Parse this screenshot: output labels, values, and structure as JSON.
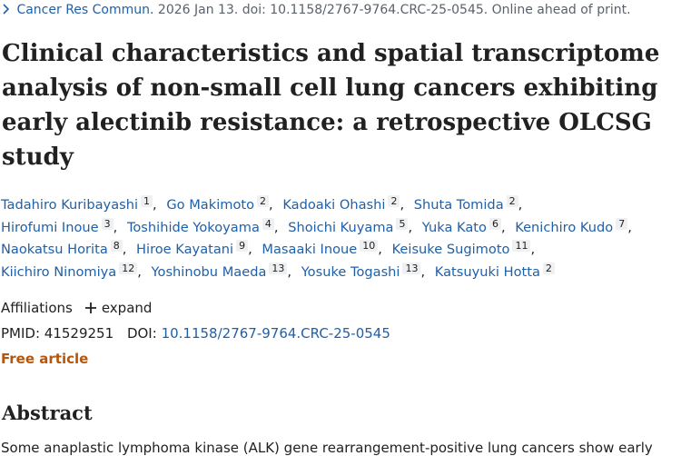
{
  "citation": {
    "journal": "Cancer Res Commun.",
    "details": "2026 Jan 13. doi: 10.1158/2767-9764.CRC-25-0545. Online ahead of print."
  },
  "title": "Clinical characteristics and spatial transcriptome analysis of non-small cell lung cancers exhibiting early alectinib resistance: a retrospective OLCSG study",
  "authors": [
    {
      "name": "Tadahiro Kuribayashi",
      "affiliation": "1"
    },
    {
      "name": "Go Makimoto",
      "affiliation": "2"
    },
    {
      "name": "Kadoaki Ohashi",
      "affiliation": "2"
    },
    {
      "name": "Shuta Tomida",
      "affiliation": "2"
    },
    {
      "name": "Hirofumi Inoue",
      "affiliation": "3"
    },
    {
      "name": "Toshihide Yokoyama",
      "affiliation": "4"
    },
    {
      "name": "Shoichi Kuyama",
      "affiliation": "5"
    },
    {
      "name": "Yuka Kato",
      "affiliation": "6"
    },
    {
      "name": "Kenichiro Kudo",
      "affiliation": "7"
    },
    {
      "name": "Naokatsu Horita",
      "affiliation": "8"
    },
    {
      "name": "Hiroe Kayatani",
      "affiliation": "9"
    },
    {
      "name": "Masaaki Inoue",
      "affiliation": "10"
    },
    {
      "name": "Keisuke Sugimoto",
      "affiliation": "11"
    },
    {
      "name": "Kiichiro Ninomiya",
      "affiliation": "12"
    },
    {
      "name": "Yoshinobu Maeda",
      "affiliation": "13"
    },
    {
      "name": "Yosuke Togashi",
      "affiliation": "13"
    },
    {
      "name": "Katsuyuki Hotta",
      "affiliation": "2"
    }
  ],
  "author_separator": ",",
  "affiliations": {
    "label": "Affiliations",
    "expand": "expand"
  },
  "ids": {
    "pmid_label": "PMID:",
    "pmid": "41529251",
    "doi_label": "DOI:",
    "doi": "10.1158/2767-9764.CRC-25-0545"
  },
  "free_article": "Free article",
  "abstract": {
    "heading": "Abstract",
    "text": "Some anaplastic lymphoma kinase (ALK) gene rearrangement-positive lung cancers show early"
  }
}
